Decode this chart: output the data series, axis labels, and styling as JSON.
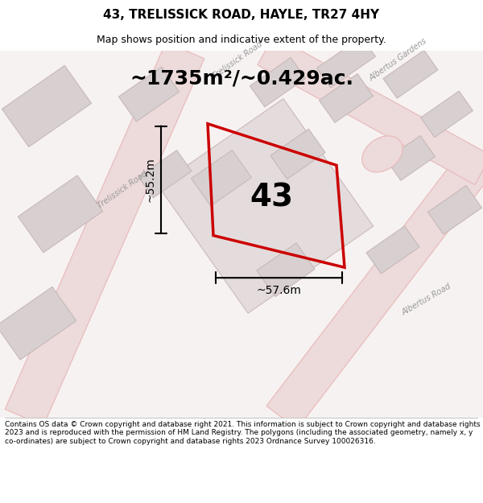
{
  "title": "43, TRELISSICK ROAD, HAYLE, TR27 4HY",
  "subtitle": "Map shows position and indicative extent of the property.",
  "area_label": "~1735m²/~0.429ac.",
  "property_number": "43",
  "width_label": "~57.6m",
  "height_label": "~55.2m",
  "footer": "Contains OS data © Crown copyright and database right 2021. This information is subject to Crown copyright and database rights 2023 and is reproduced with the permission of HM Land Registry. The polygons (including the associated geometry, namely x, y co-ordinates) are subject to Crown copyright and database rights 2023 Ordnance Survey 100026316.",
  "map_bg": "#f7f2f2",
  "road_color": "#eddada",
  "road_edge": "#e8b8b8",
  "building_fill": "#d8d0d0",
  "building_edge": "#c8b8b8",
  "highlight_color": "#cc0000",
  "road_label_color": "#999999",
  "title_fontsize": 11,
  "subtitle_fontsize": 9,
  "area_fontsize": 18,
  "number_fontsize": 28,
  "dim_fontsize": 10,
  "footer_fontsize": 6.5,
  "road_label_fontsize": 7
}
